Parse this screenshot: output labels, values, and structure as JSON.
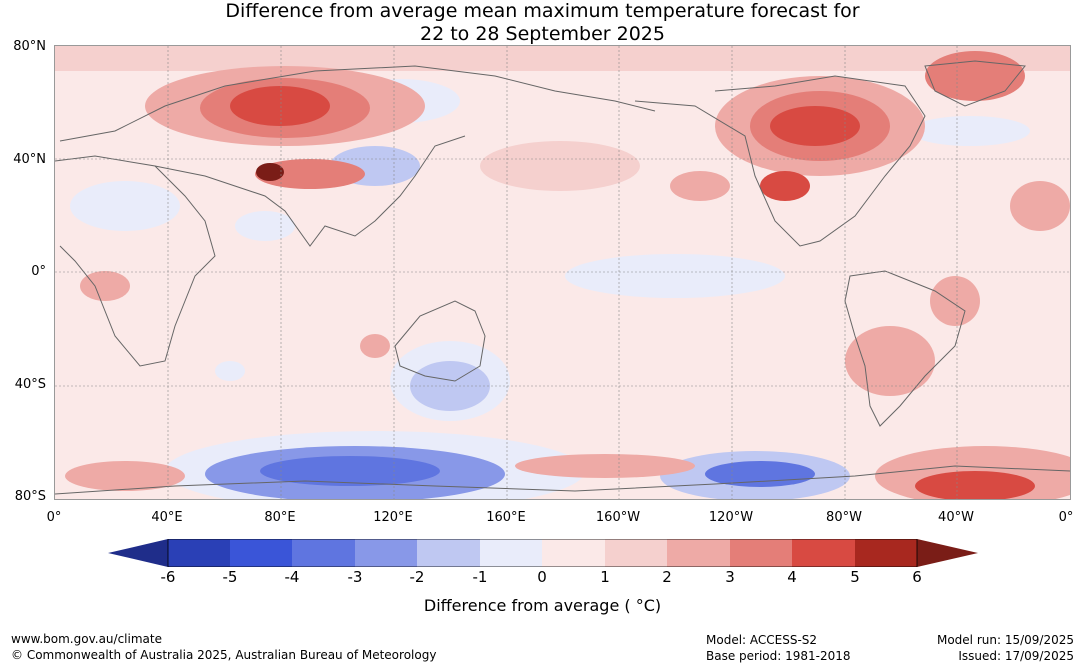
{
  "title_line1": "Difference from average mean maximum temperature forecast for",
  "title_line2": "22 to 28 September 2025",
  "lat_labels": [
    "80°N",
    "40°N",
    "0°",
    "40°S",
    "80°S"
  ],
  "lon_labels": [
    "0°",
    "40°E",
    "80°E",
    "120°E",
    "160°E",
    "160°W",
    "120°W",
    "80°W",
    "40°W",
    "0°"
  ],
  "colorbar": {
    "ticks": [
      "-6",
      "-5",
      "-4",
      "-3",
      "-2",
      "-1",
      "0",
      "1",
      "2",
      "3",
      "4",
      "5",
      "6"
    ],
    "colors": [
      "#1f2d8a",
      "#2a40b6",
      "#3a55d8",
      "#5f75e0",
      "#8898e8",
      "#bfc8f2",
      "#e9ecfa",
      "#fbe9e8",
      "#f5d0ce",
      "#eeaaa6",
      "#e47e78",
      "#d84a42",
      "#a8281f",
      "#7a1d17"
    ],
    "label": "Difference from average ( °C)"
  },
  "footer": {
    "website": "www.bom.gov.au/climate",
    "copyright": "© Commonwealth of Australia 2025, Australian Bureau of Meteorology",
    "model": "Model: ACCESS-S2",
    "base_period": "Base period: 1981-2018",
    "model_run": "Model run: 15/09/2025",
    "issued": "Issued: 17/09/2025"
  },
  "map": {
    "background_color": "#fbe9e8",
    "coastline_color": "#666666"
  }
}
